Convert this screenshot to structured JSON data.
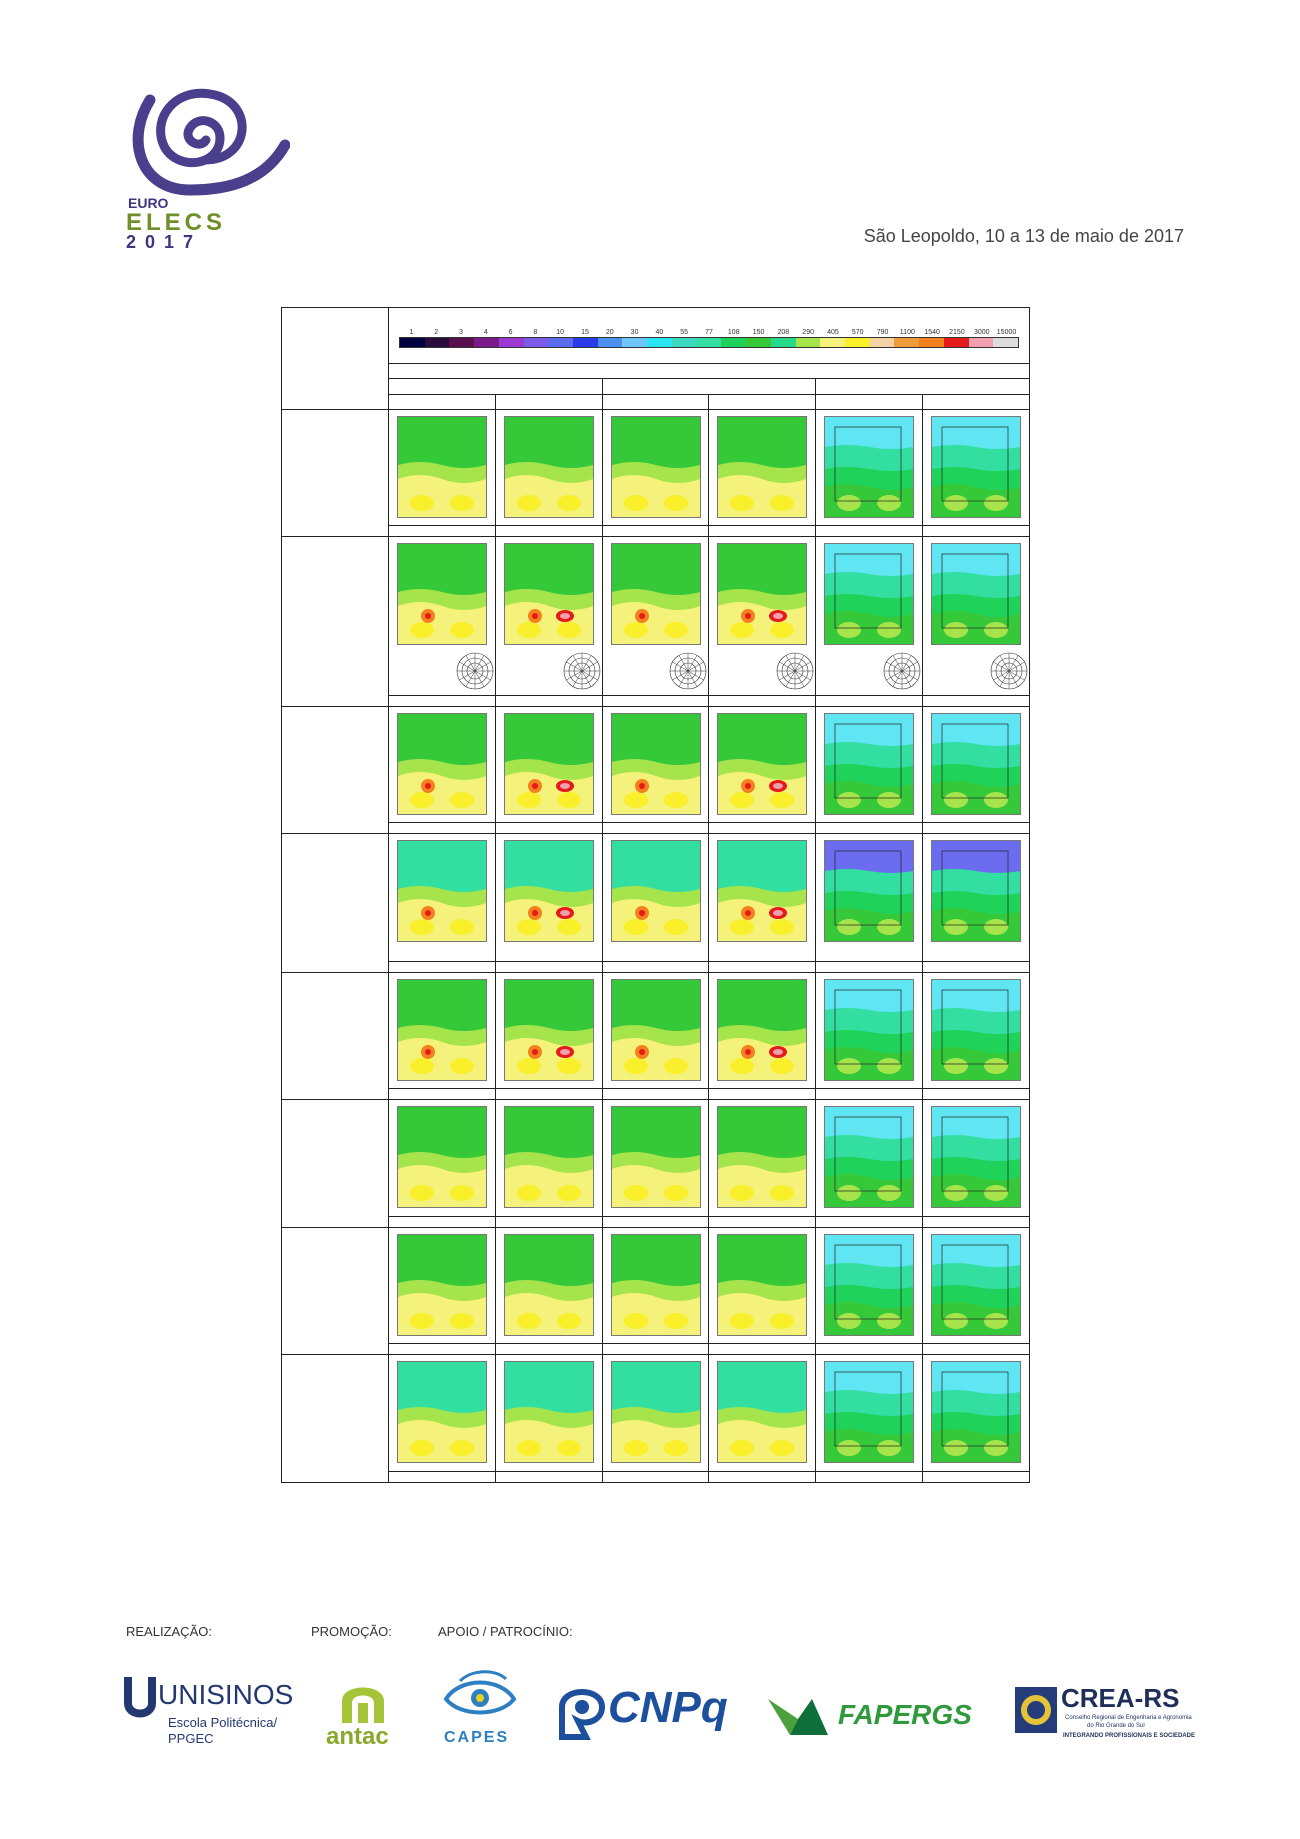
{
  "header": {
    "logo_text": [
      "EURO",
      "ELECS",
      "2017"
    ],
    "event_info": "São Leopoldo, 10 a 13 de maio de 2017"
  },
  "legend": {
    "values": [
      "1",
      "2",
      "3",
      "4",
      "6",
      "8",
      "10",
      "15",
      "20",
      "30",
      "40",
      "55",
      "77",
      "108",
      "150",
      "208",
      "290",
      "405",
      "570",
      "790",
      "1100",
      "1540",
      "2150",
      "3000",
      "15000"
    ],
    "colors": [
      "#000040",
      "#2b0a3d",
      "#5a0f4f",
      "#7a1a8c",
      "#9b3ad2",
      "#7b5bea",
      "#5c6cf0",
      "#2a3be8",
      "#4a90f0",
      "#6ec6f8",
      "#27e6f2",
      "#3dd8c0",
      "#33dfa0",
      "#1fd25a",
      "#35c93a",
      "#26d88a",
      "#a6e44c",
      "#f4f27a",
      "#f9ef2a",
      "#f5d2a4",
      "#ee9d3a",
      "#f4801e",
      "#e51a1a",
      "#f2a0b0",
      "#dcdcdc"
    ]
  },
  "footer": {
    "realizacao": "REALIZAÇÃO:",
    "promocao": "PROMOÇÃO:",
    "apoio": "APOIO / PATROCÍNIO:",
    "unisinos": "UNISINOS",
    "unisinos_sub1": "Escola Politécnica/",
    "unisinos_sub2": "PPGEC",
    "antac": "antac",
    "capes": "CAPES",
    "cnpq": "CNPq",
    "fapergs": "FAPERGS",
    "crea": "CREA-RS",
    "crea_sub1": "Conselho Regional de Engenharia e Agronomia",
    "crea_sub2": "do Rio Grande do Sul",
    "crea_sub3": "INTEGRANDO PROFISSIONAIS E SOCIEDADE"
  }
}
